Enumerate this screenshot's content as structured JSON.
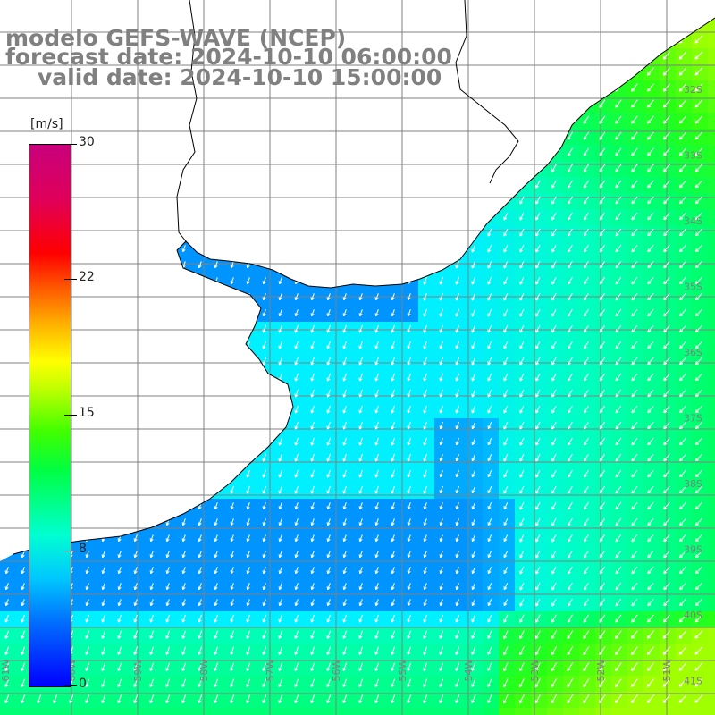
{
  "header": {
    "line1": "modelo GEFS-WAVE (NCEP)",
    "line2": "forecast date: 2024-10-10 06:00:00",
    "line3": "valid date: 2024-10-10 15:00:00"
  },
  "colorbar": {
    "unit": "[m/s]",
    "ticks": [
      "30",
      "22",
      "15",
      "8",
      "0"
    ],
    "colors": [
      "#0000ff",
      "#00c8ff",
      "#00ff40",
      "#ffff00",
      "#ff0000",
      "#c8007c"
    ]
  },
  "map": {
    "lat_labels": [
      "32S",
      "33S",
      "34S",
      "35S",
      "36S",
      "37S",
      "38S",
      "39S",
      "40S",
      "41S"
    ],
    "lon_labels": [
      "61W",
      "60W",
      "59W",
      "58W",
      "57W",
      "56W",
      "55W",
      "54W",
      "53W",
      "52W",
      "51W"
    ],
    "colors": {
      "land": "#ffffff",
      "coast": "#000000",
      "grid": "#808080",
      "arrows": "#ffffff"
    },
    "wind_direction": "toward south-southwest"
  }
}
